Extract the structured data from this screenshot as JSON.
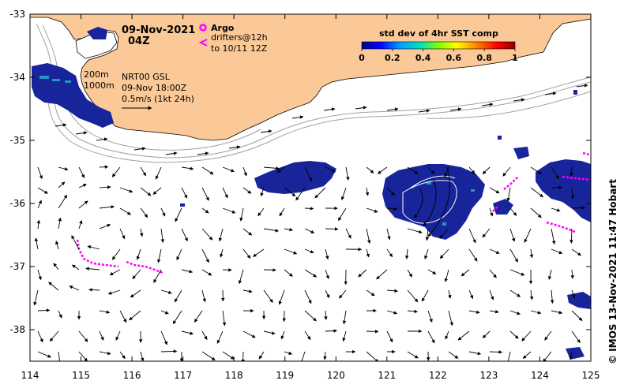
{
  "title": {
    "date": "09-Nov-2021",
    "hour": "04Z"
  },
  "legend": {
    "argo_label": "Argo",
    "drifters_label": "drifters@12h",
    "drifters_range": "to 10/11 12Z",
    "argo_color": "#ff00ff",
    "drifter_color": "#ff00ff"
  },
  "colorbar": {
    "title": "std dev of 4hr SST comp",
    "ticks": [
      "0",
      "0.2",
      "0.4",
      "0.6",
      "0.8",
      "1"
    ],
    "colors": [
      "#00008b",
      "#0000ff",
      "#00a0ff",
      "#00e0c0",
      "#80ff00",
      "#ffff00",
      "#ff8000",
      "#ff0000",
      "#8b0000"
    ]
  },
  "info": {
    "isobath_200": "200m",
    "isobath_1000": "1000m",
    "product": "NRT00 GSL",
    "datetime": "09-Nov 18:00Z",
    "scale": "0.5m/s (1kt 24h)"
  },
  "credit": "© IMOS 13-Nov-2021 11:47 Hobart",
  "axes": {
    "x_ticks": [
      "114",
      "115",
      "116",
      "117",
      "118",
      "119",
      "120",
      "121",
      "122",
      "123",
      "124",
      "125"
    ],
    "y_ticks": [
      "-33",
      "-34",
      "-35",
      "-36",
      "-37",
      "-38"
    ],
    "lon_range": [
      114,
      125
    ],
    "lat_range": [
      -38.5,
      -33
    ]
  },
  "colors": {
    "land": "#fbc997",
    "sst_patch": "#18249a",
    "isobath": "#a0a0a0"
  }
}
